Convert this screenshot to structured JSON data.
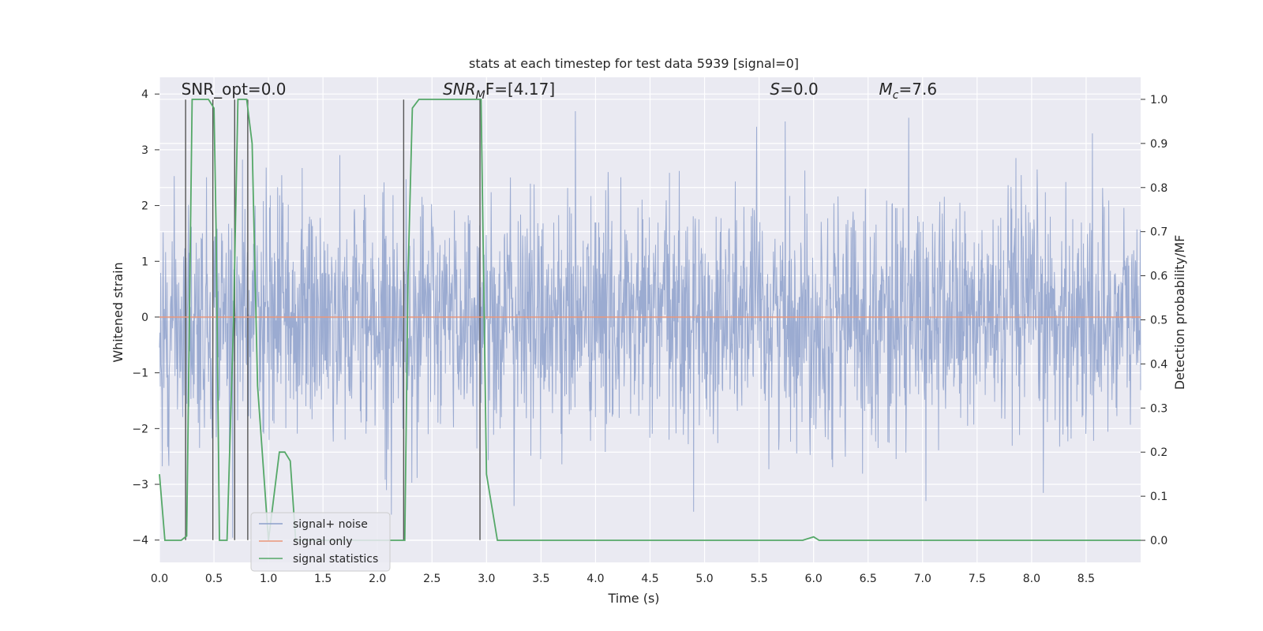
{
  "chart_data": {
    "type": "line",
    "title": "stats at each timestep for test data 5939 [signal=0]",
    "xlabel": "Time (s)",
    "ylabel_left": "Whitened strain",
    "ylabel_right": "Detection probability/MF",
    "xlim": [
      0.0,
      9.0
    ],
    "ylim_left": [
      -4.4,
      4.3
    ],
    "ylim_right": [
      -0.05,
      1.05
    ],
    "x_ticks": [
      "0.0",
      "0.5",
      "1.0",
      "1.5",
      "2.0",
      "2.5",
      "3.0",
      "3.5",
      "4.0",
      "4.5",
      "5.0",
      "5.5",
      "6.0",
      "6.5",
      "7.0",
      "7.5",
      "8.0",
      "8.5"
    ],
    "y_left_ticks": [
      "4",
      "3",
      "2",
      "1",
      "0",
      "−1",
      "−2",
      "−3",
      "−4"
    ],
    "y_right_ticks": [
      "1.0",
      "0.9",
      "0.8",
      "0.7",
      "0.6",
      "0.5",
      "0.4",
      "0.3",
      "0.2",
      "0.1",
      "0.0"
    ],
    "grid": true,
    "legend_position": "lower-left",
    "series": [
      {
        "name": "signal+ noise",
        "color": "#8da0cb",
        "axis": "left",
        "description_range": [
          -4.0,
          4.0
        ]
      },
      {
        "name": "signal only",
        "color": "#e9967a",
        "axis": "left",
        "values_constant": 0.0
      },
      {
        "name": "signal statistics",
        "color": "#55a868",
        "axis": "right",
        "x": [
          0.0,
          0.05,
          0.1,
          0.2,
          0.25,
          0.3,
          0.35,
          0.45,
          0.5,
          0.52,
          0.55,
          0.62,
          0.68,
          0.72,
          0.75,
          0.8,
          0.85,
          0.9,
          1.0,
          1.1,
          1.15,
          1.2,
          1.25,
          1.35,
          1.5,
          2.0,
          2.25,
          2.28,
          2.32,
          2.38,
          2.5,
          2.8,
          2.95,
          3.0,
          3.1,
          3.5,
          4.0,
          5.0,
          5.9,
          6.0,
          6.05,
          6.2,
          7.0,
          8.0,
          9.0
        ],
        "values": [
          0.15,
          0.0,
          0.0,
          0.0,
          0.01,
          1.0,
          1.0,
          1.0,
          0.98,
          0.7,
          0.0,
          0.0,
          0.5,
          1.0,
          1.0,
          1.0,
          0.9,
          0.35,
          0.0,
          0.2,
          0.2,
          0.18,
          0.0,
          0.0,
          0.0,
          0.0,
          0.0,
          0.6,
          0.98,
          1.0,
          1.0,
          1.0,
          1.0,
          0.15,
          0.0,
          0.0,
          0.0,
          0.0,
          0.0,
          0.008,
          0.0,
          0.0,
          0.0,
          0.0,
          0.0
        ]
      }
    ],
    "vertical_lines_x": [
      0.24,
      0.49,
      0.69,
      0.81,
      2.24,
      2.94
    ],
    "annotations": [
      {
        "text": "SNR_opt=0.0",
        "x": 0.2,
        "y": 4.0
      },
      {
        "text_main": "SNR",
        "text_sub": "M",
        "text_tail": "F=[4.17]",
        "x": 2.6,
        "y": 4.0
      },
      {
        "text_main": "S",
        "text_tail": "=0.0",
        "x": 5.6,
        "y": 4.0
      },
      {
        "text_main": "M",
        "text_sub": "c",
        "text_tail": "=7.6",
        "x": 6.6,
        "y": 4.0
      }
    ]
  }
}
